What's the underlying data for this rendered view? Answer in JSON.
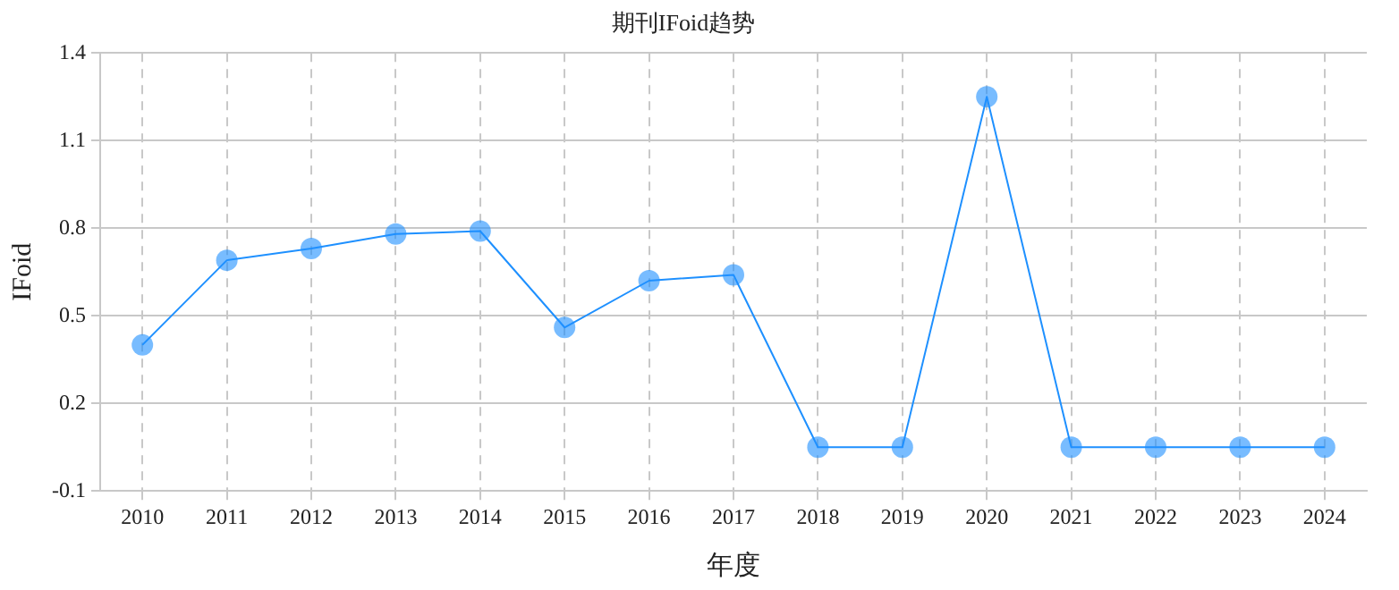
{
  "chart_data": {
    "type": "line",
    "title": "期刊IFoid趋势",
    "xlabel": "年度",
    "ylabel": "IFoid",
    "categories": [
      "2010",
      "2011",
      "2012",
      "2013",
      "2014",
      "2015",
      "2016",
      "2017",
      "2018",
      "2019",
      "2020",
      "2021",
      "2022",
      "2023",
      "2024"
    ],
    "series": [
      {
        "color": "#1e90ff",
        "values": [
          0.4,
          0.69,
          0.73,
          0.78,
          0.79,
          0.46,
          0.62,
          0.64,
          0.05,
          0.05,
          1.25,
          0.05,
          0.05,
          0.05,
          0.05
        ]
      }
    ],
    "ylim": [
      -0.1,
      1.4
    ],
    "yticks": [
      -0.1,
      0.2,
      0.5,
      0.8,
      1.1,
      1.4
    ],
    "grid": true,
    "legend": false,
    "marker": "circle",
    "line_style": "solid"
  }
}
